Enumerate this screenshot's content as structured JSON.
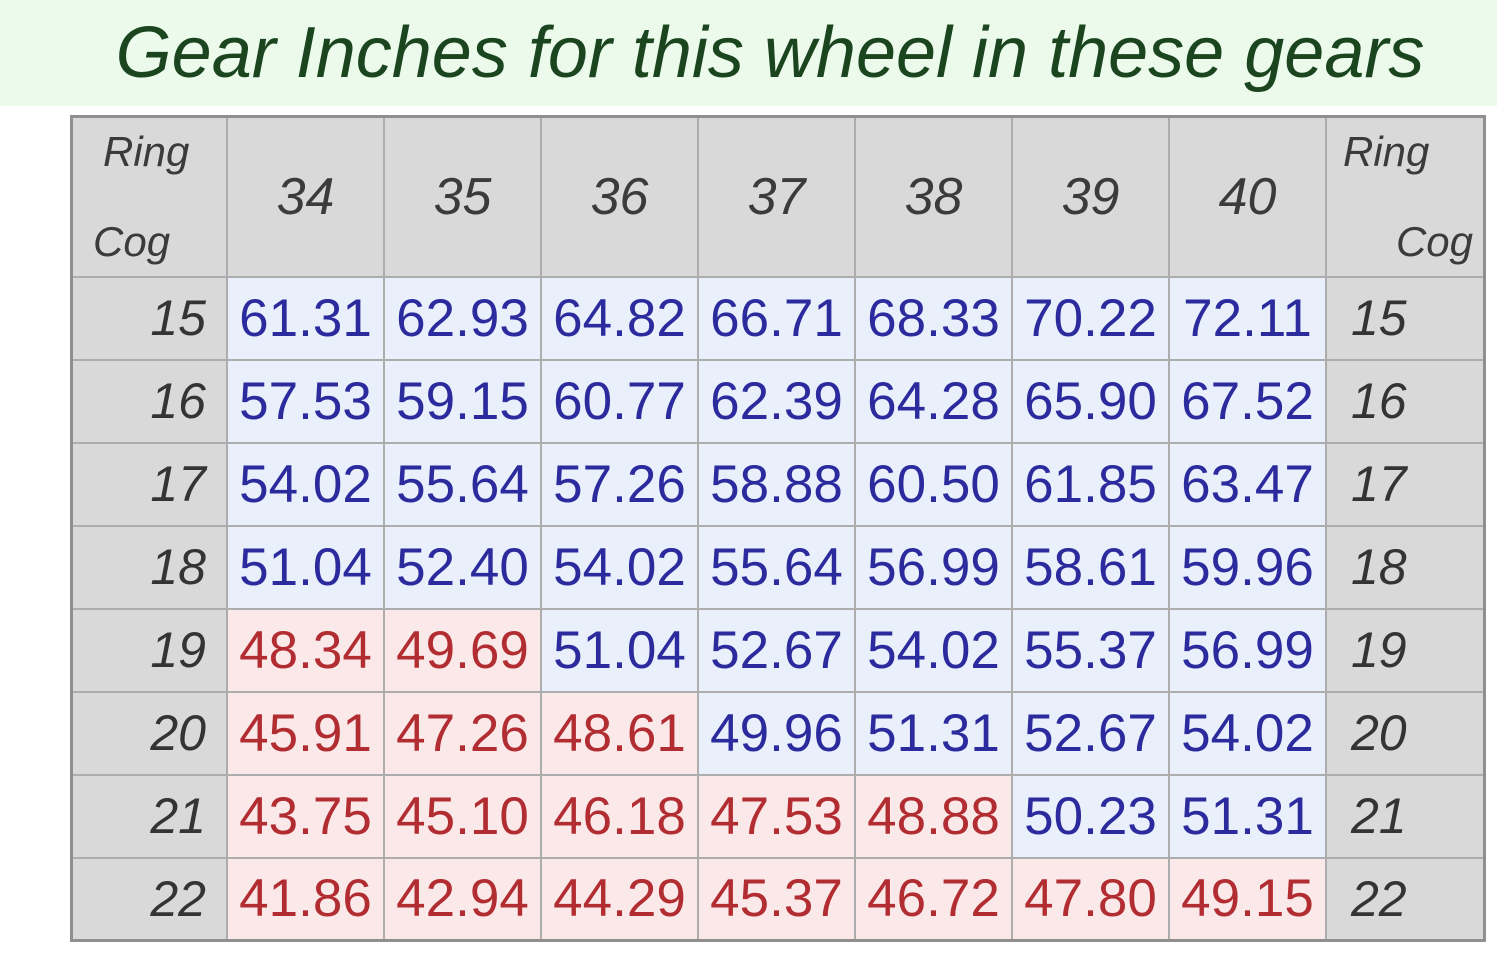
{
  "title": "Gear Inches for this wheel in these gears",
  "corner_header": {
    "ring_label": "Ring",
    "cog_label": "Cog"
  },
  "colors": {
    "page_bg": "#ffffff",
    "title_band_bg": "#ebfaeb",
    "title_text": "#1b451f",
    "header_bg": "#d9d9d9",
    "header_text": "#3b3b3b",
    "cog_text": "#343434",
    "blue_cell_bg": "#e9effb",
    "blue_text": "#2b2b9e",
    "red_cell_bg": "#fbe9e9",
    "red_text": "#b22d32",
    "border_inner": "#adadad",
    "border_outer": "#8f8f8f"
  },
  "chart_data": {
    "type": "table",
    "title": "Gear Inches for this wheel in these gears",
    "column_header_label": "Ring",
    "row_header_label": "Cog",
    "chainrings": [
      "34",
      "35",
      "36",
      "37",
      "38",
      "39",
      "40"
    ],
    "rows": [
      {
        "cog": "15",
        "cells": [
          {
            "value": "61.31",
            "tone": "blue"
          },
          {
            "value": "62.93",
            "tone": "blue"
          },
          {
            "value": "64.82",
            "tone": "blue"
          },
          {
            "value": "66.71",
            "tone": "blue"
          },
          {
            "value": "68.33",
            "tone": "blue"
          },
          {
            "value": "70.22",
            "tone": "blue"
          },
          {
            "value": "72.11",
            "tone": "blue"
          }
        ]
      },
      {
        "cog": "16",
        "cells": [
          {
            "value": "57.53",
            "tone": "blue"
          },
          {
            "value": "59.15",
            "tone": "blue"
          },
          {
            "value": "60.77",
            "tone": "blue"
          },
          {
            "value": "62.39",
            "tone": "blue"
          },
          {
            "value": "64.28",
            "tone": "blue"
          },
          {
            "value": "65.90",
            "tone": "blue"
          },
          {
            "value": "67.52",
            "tone": "blue"
          }
        ]
      },
      {
        "cog": "17",
        "cells": [
          {
            "value": "54.02",
            "tone": "blue"
          },
          {
            "value": "55.64",
            "tone": "blue"
          },
          {
            "value": "57.26",
            "tone": "blue"
          },
          {
            "value": "58.88",
            "tone": "blue"
          },
          {
            "value": "60.50",
            "tone": "blue"
          },
          {
            "value": "61.85",
            "tone": "blue"
          },
          {
            "value": "63.47",
            "tone": "blue"
          }
        ]
      },
      {
        "cog": "18",
        "cells": [
          {
            "value": "51.04",
            "tone": "blue"
          },
          {
            "value": "52.40",
            "tone": "blue"
          },
          {
            "value": "54.02",
            "tone": "blue"
          },
          {
            "value": "55.64",
            "tone": "blue"
          },
          {
            "value": "56.99",
            "tone": "blue"
          },
          {
            "value": "58.61",
            "tone": "blue"
          },
          {
            "value": "59.96",
            "tone": "blue"
          }
        ]
      },
      {
        "cog": "19",
        "cells": [
          {
            "value": "48.34",
            "tone": "red"
          },
          {
            "value": "49.69",
            "tone": "red"
          },
          {
            "value": "51.04",
            "tone": "blue"
          },
          {
            "value": "52.67",
            "tone": "blue"
          },
          {
            "value": "54.02",
            "tone": "blue"
          },
          {
            "value": "55.37",
            "tone": "blue"
          },
          {
            "value": "56.99",
            "tone": "blue"
          }
        ]
      },
      {
        "cog": "20",
        "cells": [
          {
            "value": "45.91",
            "tone": "red"
          },
          {
            "value": "47.26",
            "tone": "red"
          },
          {
            "value": "48.61",
            "tone": "red"
          },
          {
            "value": "49.96",
            "tone": "blue"
          },
          {
            "value": "51.31",
            "tone": "blue"
          },
          {
            "value": "52.67",
            "tone": "blue"
          },
          {
            "value": "54.02",
            "tone": "blue"
          }
        ]
      },
      {
        "cog": "21",
        "cells": [
          {
            "value": "43.75",
            "tone": "red"
          },
          {
            "value": "45.10",
            "tone": "red"
          },
          {
            "value": "46.18",
            "tone": "red"
          },
          {
            "value": "47.53",
            "tone": "red"
          },
          {
            "value": "48.88",
            "tone": "red"
          },
          {
            "value": "50.23",
            "tone": "blue"
          },
          {
            "value": "51.31",
            "tone": "blue"
          }
        ]
      },
      {
        "cog": "22",
        "cells": [
          {
            "value": "41.86",
            "tone": "red"
          },
          {
            "value": "42.94",
            "tone": "red"
          },
          {
            "value": "44.29",
            "tone": "red"
          },
          {
            "value": "45.37",
            "tone": "red"
          },
          {
            "value": "46.72",
            "tone": "red"
          },
          {
            "value": "47.80",
            "tone": "red"
          },
          {
            "value": "49.15",
            "tone": "red"
          }
        ]
      }
    ]
  }
}
